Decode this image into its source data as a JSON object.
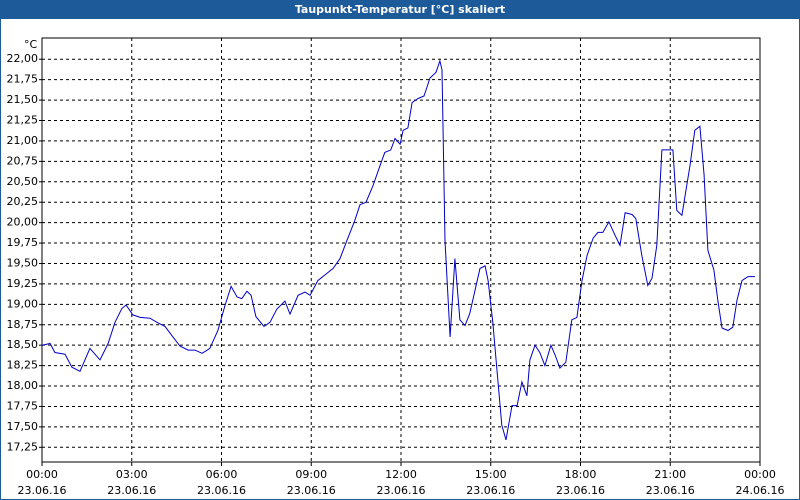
{
  "chart_data": {
    "type": "line",
    "title": "Taupunkt-Temperatur [°C] skaliert",
    "y_unit": "°C",
    "x": [
      0,
      0.27,
      0.43,
      0.77,
      1.0,
      1.27,
      1.6,
      1.94,
      2.21,
      2.44,
      2.67,
      2.81,
      3.04,
      3.28,
      3.61,
      3.84,
      4.11,
      4.34,
      4.61,
      4.88,
      5.11,
      5.35,
      5.61,
      5.88,
      6.12,
      6.32,
      6.52,
      6.68,
      6.85,
      6.99,
      7.15,
      7.42,
      7.62,
      7.85,
      8.12,
      8.29,
      8.56,
      8.79,
      8.96,
      9.22,
      9.46,
      9.73,
      9.96,
      10.19,
      10.46,
      10.63,
      10.83,
      11.06,
      11.3,
      11.46,
      11.66,
      11.8,
      11.97,
      12.07,
      12.23,
      12.37,
      12.57,
      12.77,
      12.97,
      13.17,
      13.3,
      13.37,
      13.47,
      13.64,
      13.8,
      13.97,
      14.14,
      14.3,
      14.51,
      14.64,
      14.81,
      14.91,
      15.07,
      15.21,
      15.37,
      15.51,
      15.71,
      15.88,
      16.04,
      16.21,
      16.31,
      16.48,
      16.64,
      16.81,
      17.01,
      17.15,
      17.31,
      17.51,
      17.71,
      17.88,
      18.05,
      18.22,
      18.42,
      18.58,
      18.75,
      18.95,
      19.15,
      19.32,
      19.49,
      19.72,
      19.85,
      20.05,
      20.25,
      20.39,
      20.55,
      20.72,
      20.92,
      21.09,
      21.22,
      21.39,
      21.66,
      21.82,
      21.99,
      22.13,
      22.26,
      22.46,
      22.59,
      22.73,
      22.93,
      23.09,
      23.23,
      23.4,
      23.6,
      23.83
    ],
    "values": [
      18.5,
      18.52,
      18.41,
      18.39,
      18.23,
      18.18,
      18.46,
      18.32,
      18.52,
      18.78,
      18.95,
      18.99,
      18.87,
      18.84,
      18.83,
      18.78,
      18.73,
      18.62,
      18.49,
      18.44,
      18.44,
      18.4,
      18.46,
      18.68,
      18.99,
      19.22,
      19.09,
      19.07,
      19.16,
      19.11,
      18.85,
      18.73,
      18.78,
      18.94,
      19.04,
      18.88,
      19.11,
      19.15,
      19.11,
      19.29,
      19.36,
      19.44,
      19.56,
      19.78,
      20.03,
      20.22,
      20.25,
      20.45,
      20.7,
      20.86,
      20.89,
      21.03,
      20.96,
      21.13,
      21.16,
      21.47,
      21.52,
      21.55,
      21.77,
      21.84,
      21.98,
      21.87,
      19.78,
      18.6,
      19.56,
      18.81,
      18.74,
      18.89,
      19.23,
      19.44,
      19.47,
      19.29,
      18.78,
      18.19,
      17.52,
      17.34,
      17.76,
      17.76,
      18.05,
      17.88,
      18.32,
      18.5,
      18.41,
      18.25,
      18.5,
      18.38,
      18.22,
      18.29,
      18.81,
      18.84,
      19.29,
      19.6,
      19.81,
      19.88,
      19.88,
      20.01,
      19.85,
      19.72,
      20.12,
      20.1,
      20.05,
      19.6,
      19.23,
      19.32,
      19.72,
      20.89,
      20.89,
      20.89,
      20.15,
      20.09,
      20.7,
      21.13,
      21.18,
      20.58,
      19.66,
      19.42,
      19.05,
      18.71,
      18.68,
      18.72,
      19.05,
      19.29,
      19.34,
      19.34
    ],
    "color": "#0000c8",
    "xlim": [
      0,
      24
    ],
    "xticks": [
      {
        "value": 0,
        "label": "00:00",
        "date": "23.06.16"
      },
      {
        "value": 3,
        "label": "03:00",
        "date": "23.06.16"
      },
      {
        "value": 6,
        "label": "06:00",
        "date": "23.06.16"
      },
      {
        "value": 9,
        "label": "09:00",
        "date": "23.06.16"
      },
      {
        "value": 12,
        "label": "12:00",
        "date": "23.06.16"
      },
      {
        "value": 15,
        "label": "15:00",
        "date": "23.06.16"
      },
      {
        "value": 18,
        "label": "18:00",
        "date": "23.06.16"
      },
      {
        "value": 21,
        "label": "21:00",
        "date": "23.06.16"
      },
      {
        "value": 24,
        "label": "00:00",
        "date": "24.06.16"
      }
    ],
    "ylim": [
      17.07,
      22.26
    ],
    "yticks": [
      {
        "value": 17.25,
        "label": "17,25"
      },
      {
        "value": 17.5,
        "label": "17,50"
      },
      {
        "value": 17.75,
        "label": "17,75"
      },
      {
        "value": 18,
        "label": "18,00"
      },
      {
        "value": 18.25,
        "label": "18,25"
      },
      {
        "value": 18.5,
        "label": "18,50"
      },
      {
        "value": 18.75,
        "label": "18,75"
      },
      {
        "value": 19,
        "label": "19,00"
      },
      {
        "value": 19.25,
        "label": "19,25"
      },
      {
        "value": 19.5,
        "label": "19,50"
      },
      {
        "value": 19.75,
        "label": "19,75"
      },
      {
        "value": 20,
        "label": "20,00"
      },
      {
        "value": 20.25,
        "label": "20,25"
      },
      {
        "value": 20.5,
        "label": "20,50"
      },
      {
        "value": 20.75,
        "label": "20,75"
      },
      {
        "value": 21,
        "label": "21,00"
      },
      {
        "value": 21.25,
        "label": "21,25"
      },
      {
        "value": 21.5,
        "label": "21,50"
      },
      {
        "value": 21.75,
        "label": "21,75"
      },
      {
        "value": 22,
        "label": "22,00"
      }
    ],
    "grid": true
  }
}
